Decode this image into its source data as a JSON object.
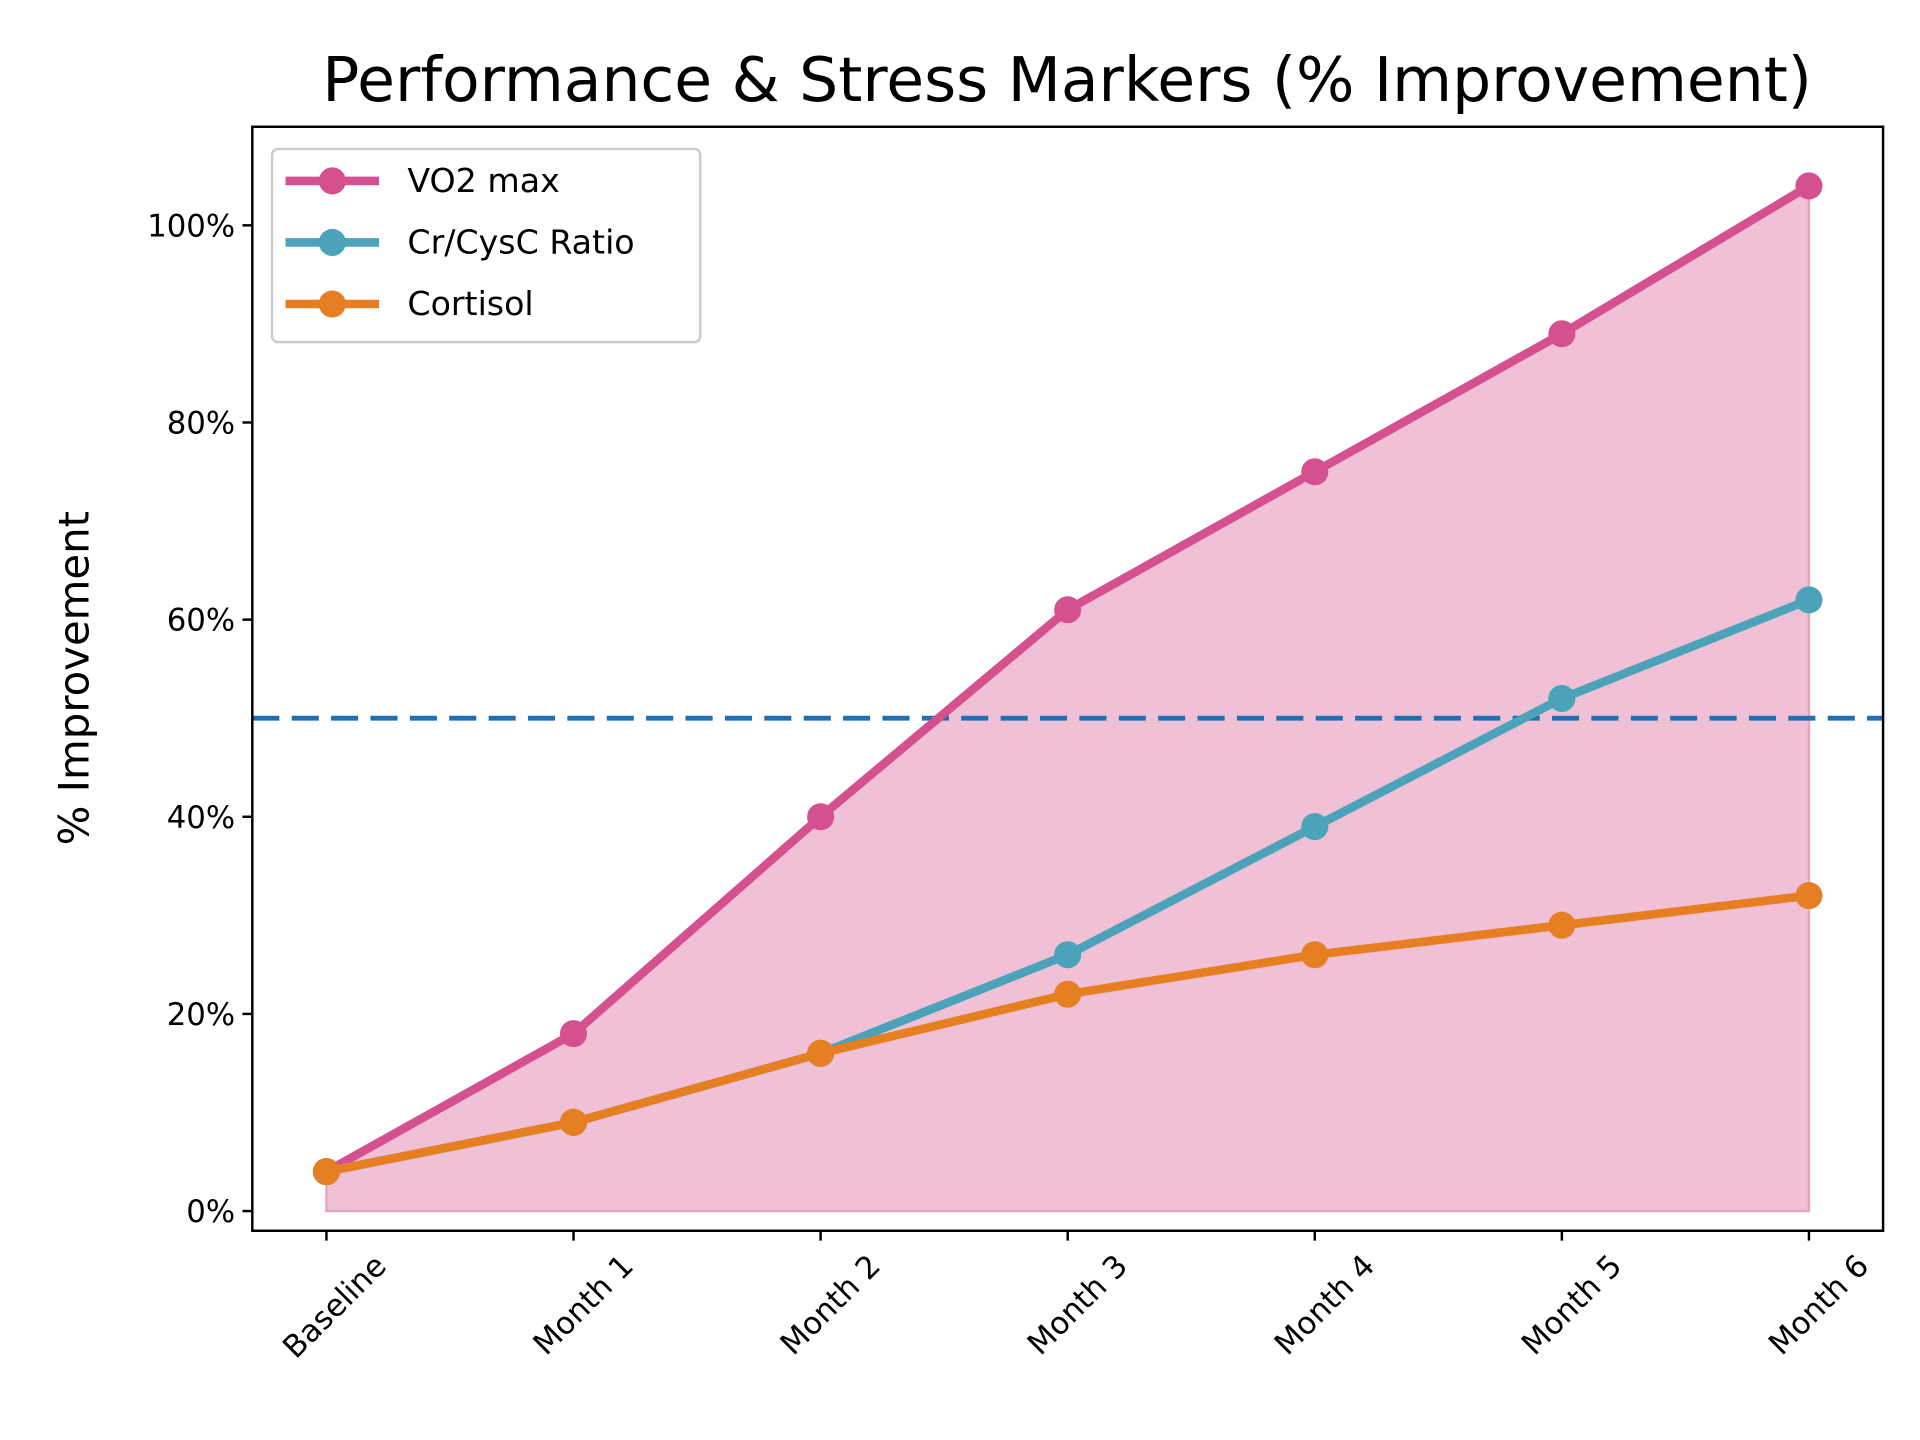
{
  "chart_data": {
    "type": "line",
    "title": "Performance & Stress Markers (% Improvement)",
    "xlabel": "",
    "ylabel": "% Improvement",
    "categories": [
      "Baseline",
      "Month 1",
      "Month 2",
      "Month 3",
      "Month 4",
      "Month 5",
      "Month 6"
    ],
    "series": [
      {
        "name": "VO2 max",
        "color": "#d4508e",
        "values": [
          4,
          18,
          40,
          61,
          75,
          89,
          104
        ],
        "fill_to_zero": true,
        "fill_color": "#f0c0d6"
      },
      {
        "name": "Cr/CysC Ratio",
        "color": "#4aa3b8",
        "values": [
          4,
          9,
          16,
          26,
          39,
          52,
          62
        ]
      },
      {
        "name": "Cortisol",
        "color": "#e67e22",
        "values": [
          4,
          9,
          16,
          22,
          26,
          29,
          32
        ]
      }
    ],
    "reference_line": {
      "y": 50,
      "style": "dashed",
      "color": "#1f6fb2"
    },
    "yticks": [
      0,
      20,
      40,
      60,
      80,
      100
    ],
    "ytick_labels": [
      "0%",
      "20%",
      "40%",
      "60%",
      "80%",
      "100%"
    ],
    "ylim": [
      -2,
      110
    ],
    "xlim": [
      -0.3,
      6.3
    ],
    "grid": false,
    "legend_position": "top-left"
  }
}
